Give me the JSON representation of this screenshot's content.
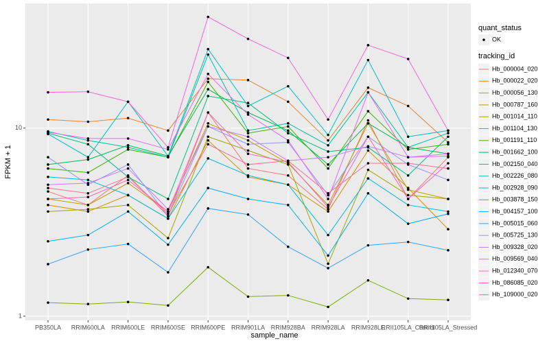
{
  "chart_data": {
    "type": "line",
    "x_label": "sample_name",
    "y_label": "FPKM + 1",
    "categories": [
      "PB350LA",
      "RRIM600LA",
      "RRIM600LE",
      "RRIM600SE",
      "RRIM600PE",
      "RRIM901LA",
      "RRIM928BA",
      "RRIM928LA",
      "RRIM928LE",
      "RRII105LA_Control",
      "RRII105LA_Stressed"
    ],
    "ylim": [
      0.95,
      46
    ],
    "yticks": [
      1,
      10
    ],
    "log_y": true,
    "grid": true,
    "shape_legend": {
      "title": "quant_status",
      "labels": [
        "OK"
      ]
    },
    "legend_title": "tracking_id",
    "series": [
      {
        "name": "Hb_000004_020",
        "color": "#F8766D",
        "values": [
          4.6,
          3.9,
          5.6,
          3.4,
          12.1,
          6.1,
          5.6,
          3.7,
          11,
          4.2,
          7
        ]
      },
      {
        "name": "Hb_000022_020",
        "color": "#EA8331",
        "values": [
          11.1,
          10.8,
          11.3,
          9.7,
          18.3,
          18,
          13.8,
          8.6,
          16.4,
          13.1,
          8.4
        ]
      },
      {
        "name": "Hb_000056_130",
        "color": "#D89000",
        "values": [
          3.9,
          3.6,
          4.4,
          3.3,
          8.6,
          5.5,
          5.0,
          3.6,
          7.6,
          4.8,
          2.9
        ]
      },
      {
        "name": "Hb_000787_160",
        "color": "#C09B00",
        "values": [
          4.2,
          3.9,
          5.1,
          3.6,
          10.6,
          8.6,
          6.5,
          3.9,
          10.6,
          4.7,
          4.2
        ]
      },
      {
        "name": "Hb_001014_110",
        "color": "#A3A500",
        "values": [
          3.6,
          3.7,
          3.9,
          2.6,
          9,
          7.6,
          6.4,
          1.9,
          6,
          4.4,
          4.2
        ]
      },
      {
        "name": "Hb_001104_130",
        "color": "#7CAE00",
        "values": [
          1.18,
          1.16,
          1.19,
          1.14,
          1.82,
          1.27,
          1.29,
          1.12,
          1.55,
          1.24,
          1.22
        ]
      },
      {
        "name": "Hb_001191_110",
        "color": "#39B600",
        "values": [
          6.1,
          5.8,
          7.7,
          7.0,
          17.6,
          9.4,
          10.2,
          6.1,
          12.3,
          7.7,
          8.2
        ]
      },
      {
        "name": "Hb_001662_100",
        "color": "#00BB4E",
        "values": [
          6.4,
          6.8,
          8.1,
          7.1,
          16.1,
          12.1,
          9.7,
          6.4,
          10.6,
          7.9,
          7.3
        ]
      },
      {
        "name": "Hb_002150_040",
        "color": "#00BF7D",
        "values": [
          9.4,
          8.2,
          5.5,
          4.2,
          14.8,
          13.6,
          9.4,
          7.5,
          7.9,
          5.6,
          9.0
        ]
      },
      {
        "name": "Hb_002226_080",
        "color": "#00C1A3",
        "values": [
          9.6,
          8.6,
          7.9,
          7.0,
          24.6,
          9.7,
          10.6,
          8.1,
          15.5,
          7.9,
          9.4
        ]
      },
      {
        "name": "Hb_002928_090",
        "color": "#00BFC4",
        "values": [
          9.3,
          7.0,
          13.8,
          7.1,
          26.3,
          13.1,
          16.7,
          9.2,
          23,
          9.0,
          9.7
        ]
      },
      {
        "name": "Hb_003878_150",
        "color": "#00BAE0",
        "values": [
          5.5,
          5.3,
          4.4,
          3.3,
          6.9,
          5.6,
          5.0,
          2.7,
          5.4,
          3.9,
          3.6
        ]
      },
      {
        "name": "Hb_004157_100",
        "color": "#00B0F6",
        "values": [
          2.5,
          2.7,
          3.6,
          2.4,
          4.8,
          4.2,
          3.9,
          2.1,
          4.5,
          3.1,
          3.5
        ]
      },
      {
        "name": "Hb_005015_060",
        "color": "#35A2FF",
        "values": [
          1.89,
          2.26,
          2.42,
          1.71,
          3.74,
          3.47,
          2.34,
          1.8,
          2.38,
          2.48,
          2.24
        ]
      },
      {
        "name": "Hb_005725_130",
        "color": "#9590FF",
        "values": [
          7.0,
          5.0,
          6.4,
          3.4,
          10.2,
          8.2,
          8.4,
          4.4,
          9.0,
          6.4,
          5.3
        ]
      },
      {
        "name": "Hb_009328_020",
        "color": "#C77CFF",
        "values": [
          5.0,
          5.1,
          6.1,
          3.7,
          10.2,
          9.0,
          6.7,
          7.0,
          8.0,
          7.0,
          7.3
        ]
      },
      {
        "name": "Hb_009569_040",
        "color": "#E76BF3",
        "values": [
          9.5,
          8.8,
          8.8,
          7.7,
          19.4,
          11.8,
          8.6,
          4.2,
          15.5,
          7.0,
          7.1
        ]
      },
      {
        "name": "Hb_012340_070",
        "color": "#FA62DB",
        "values": [
          15.5,
          15.6,
          13.8,
          7.9,
          39,
          29.8,
          23.6,
          11.1,
          27.6,
          23.3,
          9.7
        ]
      },
      {
        "name": "Hb_086085_020",
        "color": "#FF62BC",
        "values": [
          4.2,
          4.3,
          5.3,
          3.6,
          12.1,
          7.3,
          6.6,
          3.8,
          9.0,
          4.2,
          6.5
        ]
      },
      {
        "name": "Hb_109000_020",
        "color": "#FF6C91",
        "values": [
          4.8,
          4.5,
          5.5,
          3.5,
          8.2,
          6.4,
          6.7,
          4.5,
          6.5,
          6.5,
          6.1
        ]
      }
    ]
  }
}
